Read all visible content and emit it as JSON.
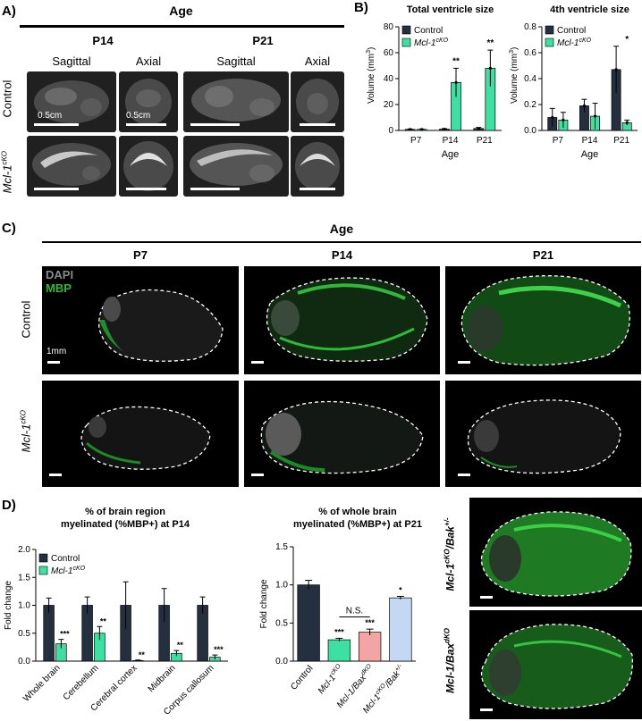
{
  "panel_a": {
    "label": "A)",
    "header": "Age",
    "ages": [
      "P14",
      "P21"
    ],
    "views": [
      "Sagittal",
      "Axial"
    ],
    "rows": [
      "Control",
      "Mcl-1",
      "cKO"
    ],
    "scalebar_label": "0.5cm"
  },
  "panel_b": {
    "label": "B)",
    "charts": [
      {
        "title": "Total ventricle size",
        "ylabel_main": "Volume (mm",
        "ylabel_sup": "3",
        "ylabel_end": ")",
        "xlabel": "Age",
        "categories": [
          "P7",
          "P14",
          "P21"
        ],
        "yticks": [
          "0",
          "20",
          "40",
          "60",
          "80"
        ],
        "legend": [
          "Control",
          "Mcl-1",
          "cKO"
        ],
        "significance": [
          "",
          "**",
          "**"
        ]
      },
      {
        "title": "4th ventricle size",
        "ylabel_main": "Volume (mm",
        "ylabel_sup": "3",
        "ylabel_end": ")",
        "xlabel": "Age",
        "categories": [
          "P7",
          "P14",
          "P21"
        ],
        "yticks": [
          "0.0",
          "0.2",
          "0.4",
          "0.6",
          "0.8"
        ],
        "legend": [
          "Control",
          "Mcl-1",
          "cKO"
        ],
        "significance": [
          "",
          "",
          "*"
        ]
      }
    ]
  },
  "panel_c": {
    "label": "C)",
    "header": "Age",
    "ages": [
      "P7",
      "P14",
      "P21"
    ],
    "rows": [
      "Control",
      "Mcl-1",
      "cKO"
    ],
    "stain_dapi": "DAPI",
    "stain_mbp": "MBP",
    "scalebar_label": "1mm"
  },
  "panel_d": {
    "label": "D)",
    "charts": [
      {
        "title_line1": "% of brain region",
        "title_line2": "myelinated (%MBP+) at P14",
        "ylabel": "Fold change",
        "categories": [
          "Whole brain",
          "Cerebellum",
          "Cerebral cortex",
          "Midbrain",
          "Corpus callosum"
        ],
        "yticks": [
          "0.0",
          "0.5",
          "1.0",
          "1.5",
          "2.0"
        ],
        "legend": [
          "Control",
          "Mcl-1",
          "cKO"
        ],
        "significance": [
          "***",
          "**",
          "**",
          "**",
          "***"
        ]
      },
      {
        "title_line1": "% of whole brain",
        "title_line2": "myelinated (%MBP+) at P21",
        "ylabel": "Fold change",
        "categories": [
          "Control",
          "Mcl-1",
          "Mcl-1/Bax",
          "Mcl-1",
          "cKO",
          "dKO",
          "/Bak",
          "+/-"
        ],
        "yticks": [
          "0.0",
          "0.5",
          "1.0",
          "1.5"
        ],
        "significance": [
          "",
          "***",
          "***",
          "*"
        ],
        "bracket_label": "N.S."
      }
    ],
    "side_rows": [
      "Mcl-1",
      "cKO",
      "/Bak",
      "+/-",
      "Mcl-1/Bax",
      "dKO"
    ]
  },
  "chart_data": [
    {
      "type": "bar",
      "title": "Total ventricle size",
      "xlabel": "Age",
      "ylabel": "Volume (mm3)",
      "categories": [
        "P7",
        "P14",
        "P21"
      ],
      "ylim": [
        0,
        80
      ],
      "series": [
        {
          "name": "Control",
          "values": [
            0.8,
            1.0,
            1.5
          ],
          "errors": [
            0.3,
            0.4,
            0.8
          ],
          "color": "#243040"
        },
        {
          "name": "Mcl-1cKO",
          "values": [
            0.8,
            37,
            48
          ],
          "errors": [
            0.3,
            11,
            14
          ],
          "color": "#3de0a3"
        }
      ]
    },
    {
      "type": "bar",
      "title": "4th ventricle size",
      "xlabel": "Age",
      "ylabel": "Volume (mm3)",
      "categories": [
        "P7",
        "P14",
        "P21"
      ],
      "ylim": [
        0,
        0.8
      ],
      "series": [
        {
          "name": "Control",
          "values": [
            0.1,
            0.19,
            0.47
          ],
          "errors": [
            0.07,
            0.05,
            0.18
          ],
          "color": "#243040"
        },
        {
          "name": "Mcl-1cKO",
          "values": [
            0.08,
            0.11,
            0.06
          ],
          "errors": [
            0.06,
            0.1,
            0.02
          ],
          "color": "#3de0a3"
        }
      ]
    },
    {
      "type": "bar",
      "title": "% of brain region myelinated (%MBP+) at P14",
      "ylabel": "Fold change",
      "categories": [
        "Whole brain",
        "Cerebellum",
        "Cerebral cortex",
        "Midbrain",
        "Corpus callosum"
      ],
      "ylim": [
        0,
        2.0
      ],
      "series": [
        {
          "name": "Control",
          "values": [
            1.0,
            1.0,
            1.0,
            1.0,
            1.0
          ],
          "errors": [
            0.13,
            0.15,
            0.42,
            0.3,
            0.15
          ],
          "color": "#243040"
        },
        {
          "name": "Mcl-1cKO",
          "values": [
            0.31,
            0.5,
            0.01,
            0.14,
            0.07
          ],
          "errors": [
            0.08,
            0.12,
            0.01,
            0.05,
            0.04
          ],
          "color": "#3de0a3"
        }
      ]
    },
    {
      "type": "bar",
      "title": "% of whole brain myelinated (%MBP+) at P21",
      "ylabel": "Fold change",
      "categories": [
        "Control",
        "Mcl-1cKO",
        "Mcl-1/BaxdKO",
        "Mcl-1cKO/Bak+/-"
      ],
      "ylim": [
        0,
        1.5
      ],
      "values": [
        1.0,
        0.28,
        0.38,
        0.83
      ],
      "errors": [
        0.06,
        0.02,
        0.04,
        0.02
      ],
      "colors": [
        "#243040",
        "#3de0a3",
        "#f4a4a4",
        "#c4d8f4"
      ]
    }
  ]
}
